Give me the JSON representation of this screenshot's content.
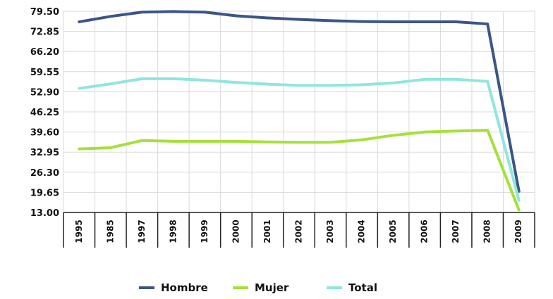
{
  "chart_data": {
    "type": "line",
    "categories": [
      "1995",
      "1985",
      "1997",
      "1998",
      "1999",
      "2000",
      "2001",
      "2002",
      "2003",
      "2004",
      "2005",
      "2006",
      "2007",
      "2008",
      "2009"
    ],
    "ylim": [
      13.0,
      79.5
    ],
    "yticks": [
      "79.50",
      "72.85",
      "66.20",
      "59.55",
      "52.90",
      "46.25",
      "39.60",
      "32.95",
      "26.30",
      "19.65",
      "13.00"
    ],
    "grid": true,
    "legend_position": "bottom",
    "series": [
      {
        "name": "Hombre",
        "color": "#3b5586",
        "values": [
          76.0,
          77.8,
          79.2,
          79.4,
          79.2,
          78.0,
          77.3,
          76.8,
          76.4,
          76.1,
          76.0,
          76.0,
          76.0,
          75.3,
          20.0
        ]
      },
      {
        "name": "Mujer",
        "color": "#a6e03a",
        "values": [
          34.0,
          34.4,
          36.8,
          36.5,
          36.5,
          36.5,
          36.3,
          36.2,
          36.2,
          37.0,
          38.5,
          39.6,
          39.9,
          40.2,
          13.8
        ]
      },
      {
        "name": "Total",
        "color": "#8fe6de",
        "values": [
          54.0,
          55.5,
          57.2,
          57.2,
          56.7,
          56.0,
          55.4,
          55.0,
          55.0,
          55.2,
          55.8,
          57.0,
          57.0,
          56.3,
          17.0
        ]
      }
    ]
  }
}
